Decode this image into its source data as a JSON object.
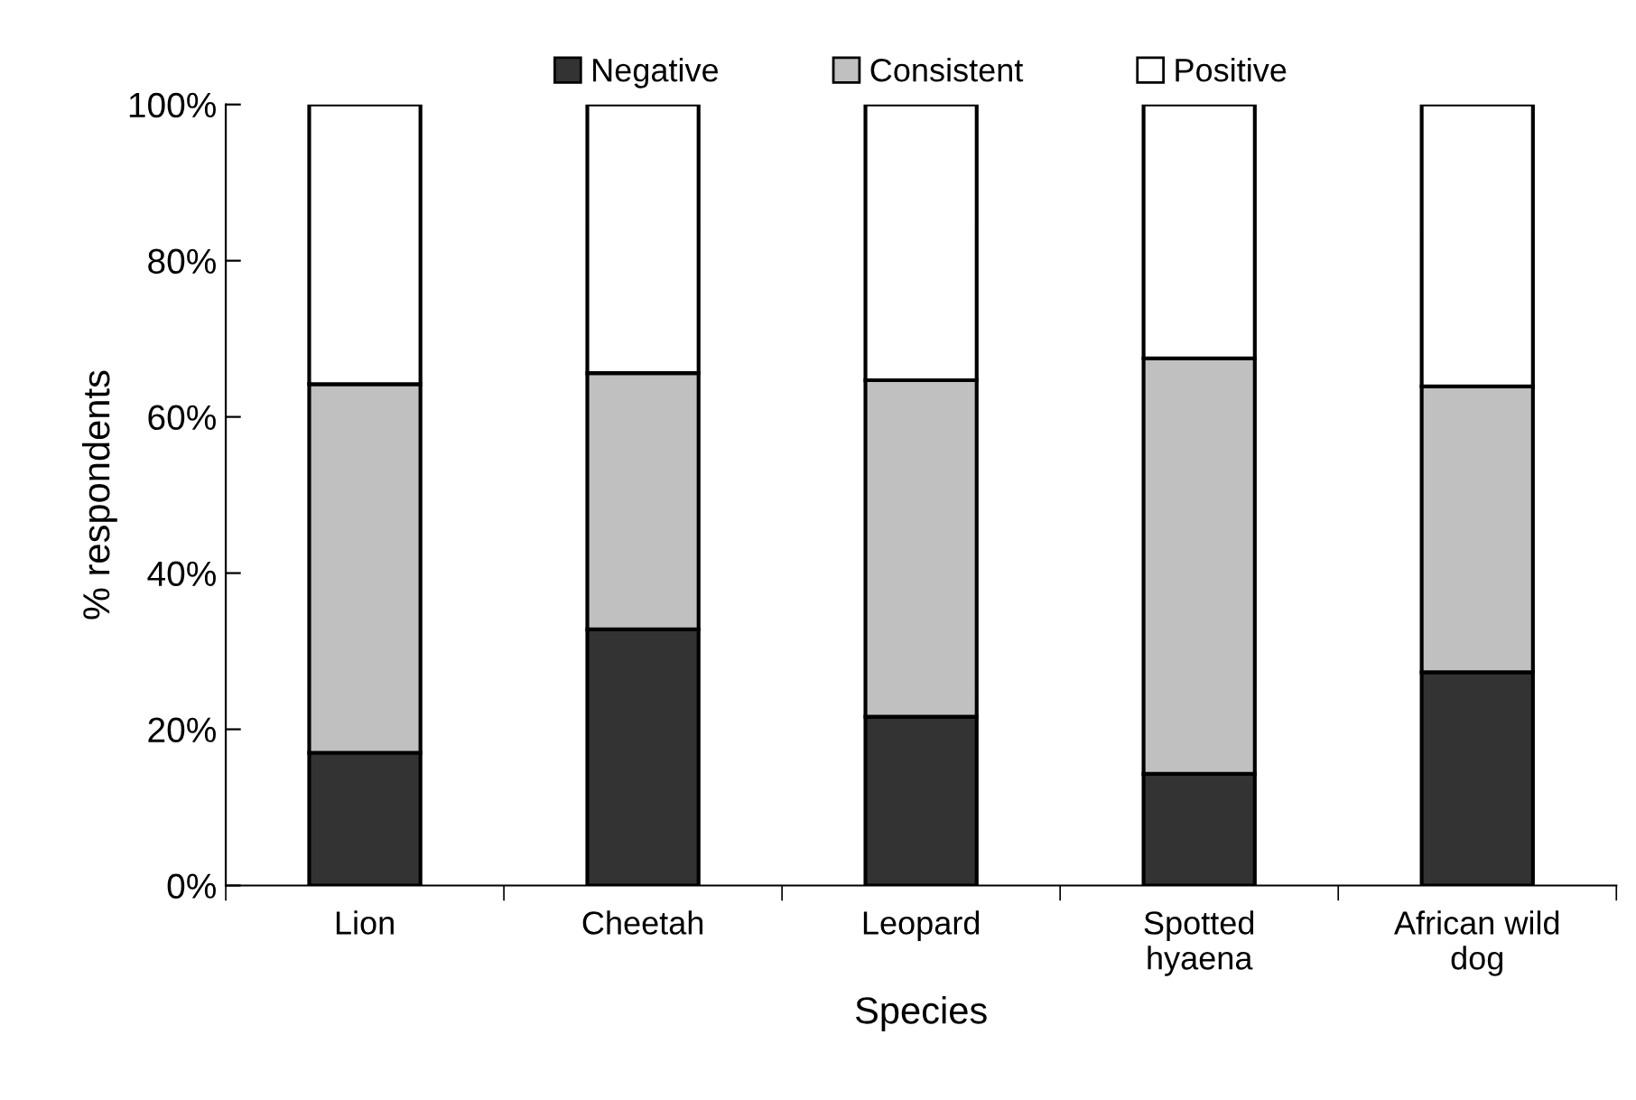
{
  "chart_data": {
    "type": "bar",
    "stacked": true,
    "xlabel": "Species",
    "ylabel": "% respondents",
    "categories": [
      "Lion",
      "Cheetah",
      "Leopard",
      "Spotted\nhyaena",
      "African wild\ndog"
    ],
    "series": [
      {
        "name": "Negative",
        "color": "#333333",
        "values": [
          17.0,
          32.8,
          21.6,
          14.3,
          27.3
        ]
      },
      {
        "name": "Consistent",
        "color": "#c0c0c0",
        "values": [
          47.2,
          32.8,
          43.1,
          53.2,
          36.6
        ]
      },
      {
        "name": "Positive",
        "color": "#ffffff",
        "values": [
          35.8,
          34.4,
          35.3,
          32.5,
          36.1
        ]
      }
    ],
    "ylim": [
      0,
      100
    ],
    "yticks": [
      {
        "value": 0,
        "label": "0%"
      },
      {
        "value": 20,
        "label": "20%"
      },
      {
        "value": 40,
        "label": "40%"
      },
      {
        "value": 60,
        "label": "60%"
      },
      {
        "value": 80,
        "label": "80%"
      },
      {
        "value": 100,
        "label": "100%"
      }
    ],
    "legend": "top",
    "grid": false
  }
}
